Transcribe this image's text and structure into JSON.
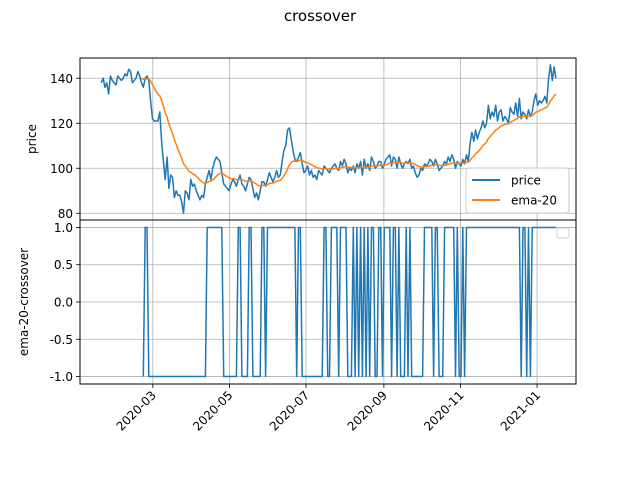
{
  "figure": {
    "title": "crossover"
  },
  "colors": {
    "price": "#1f77b4",
    "ema": "#ff7f0e",
    "grid": "#b0b0b0",
    "axis": "#000000"
  },
  "chart_data": [
    {
      "type": "line",
      "ylabel": "price",
      "ylim": [
        77,
        149
      ],
      "yticks": [
        80,
        100,
        120,
        140
      ],
      "x_start": "2020-01-20",
      "x_end": "2021-01-16",
      "xlim": [
        "2020-01-03",
        "2021-02-01"
      ],
      "grid": true,
      "legend": {
        "position": "lower-right"
      },
      "series": [
        {
          "name": "price",
          "values": [
            138,
            140,
            136,
            138,
            133,
            141,
            139,
            138,
            137,
            141,
            140,
            139,
            140,
            142,
            141,
            144,
            143,
            138,
            139,
            140,
            143,
            141,
            138,
            136,
            140,
            141,
            139,
            130,
            122,
            121,
            121,
            121,
            125,
            112,
            103,
            95,
            105,
            91,
            97,
            96,
            87,
            90,
            88,
            88,
            85,
            80,
            90,
            89,
            86,
            95,
            92,
            93,
            90,
            88,
            86,
            88,
            87,
            93,
            96,
            99,
            95,
            100,
            103,
            105,
            104,
            103,
            98,
            93,
            92,
            91,
            90,
            93,
            95,
            94,
            92,
            95,
            97,
            93,
            92,
            90,
            93,
            96,
            95,
            91,
            87,
            89,
            86,
            90,
            94,
            94,
            92,
            95,
            98,
            96,
            94,
            96,
            99,
            96,
            97,
            103,
            108,
            110,
            117,
            118,
            113,
            108,
            104,
            103,
            105,
            107,
            102,
            98,
            99,
            101,
            97,
            99,
            96,
            97,
            95,
            99,
            98,
            97,
            101,
            100,
            99,
            98,
            100,
            101,
            102,
            100,
            99,
            103,
            101,
            104,
            102,
            98,
            100,
            99,
            101,
            98,
            102,
            100,
            103,
            97,
            104,
            100,
            102,
            99,
            105,
            103,
            100,
            101,
            103,
            103,
            100,
            102,
            104,
            105,
            106,
            101,
            105,
            104,
            100,
            105,
            102,
            100,
            102,
            103,
            102,
            104,
            100,
            101,
            98,
            96,
            97,
            100,
            99,
            102,
            101,
            102,
            104,
            103,
            101,
            104,
            102,
            99,
            100,
            101,
            103,
            102,
            105,
            103,
            106,
            104,
            100,
            103,
            102,
            101,
            104,
            102,
            106,
            103,
            111,
            116,
            112,
            117,
            113,
            116,
            118,
            121,
            118,
            120,
            128,
            122,
            125,
            123,
            128,
            121,
            125,
            126,
            121,
            123,
            122,
            120,
            127,
            125,
            124,
            129,
            123,
            131,
            122,
            125,
            124,
            122,
            126,
            123,
            125,
            130,
            133,
            128,
            130,
            129,
            130,
            132,
            129,
            140,
            146,
            139,
            145,
            140
          ],
          "color": "#1f77b4"
        },
        {
          "name": "ema-20",
          "color": "#ff7f0e"
        }
      ]
    },
    {
      "type": "line",
      "ylabel": "ema-20-crossover",
      "ylim": [
        -1.1,
        1.1
      ],
      "yticks": [
        1.0,
        0.5,
        0.0,
        -0.5,
        -1.0
      ],
      "xticks": [
        "2020-03",
        "2020-05",
        "2020-07",
        "2020-09",
        "2020-11",
        "2021-01"
      ],
      "xlim": [
        "2020-01-03",
        "2021-02-01"
      ],
      "grid": true,
      "legend": {
        "position": "upper-right",
        "entries": []
      },
      "series": [
        {
          "name": "ema-20-crossover",
          "values": "sign(price - ema-20), plotted from 2020-02-21 onward",
          "color": "#1f77b4"
        }
      ]
    }
  ]
}
